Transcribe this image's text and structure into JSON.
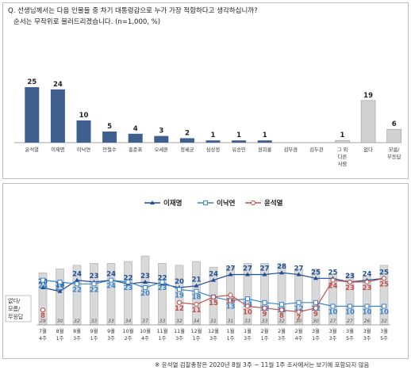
{
  "question": {
    "line1": "Q. 선생님께서는 다음 인물들 중 차기 대통령감으로 누가 가장 적합하다고 생각하십니까?",
    "line2": "순서는 무작위로 불러드리겠습니다. (n=1,000, %)"
  },
  "footnote": "※ 윤석열 검찰총장은 2020년 8월 3주 ~ 11월 1주 조사에서는 보기에 포함되지 않음",
  "colors": {
    "bar_main": "#3f5f8f",
    "bar_other": "#d0d0d0",
    "line_lee_jm": "#1f4e96",
    "line_lee_ny": "#3a85c8",
    "line_yoon": "#c0504d",
    "back_bar": "#d9d9d9"
  },
  "chart_data": [
    {
      "type": "bar",
      "categories": [
        "윤석열",
        "이재명",
        "이낙연",
        "안철수",
        "홍준표",
        "오세훈",
        "정세균",
        "심상정",
        "유승민",
        "원희룡",
        "김부겸",
        "김두관",
        "그 외 다른 사람",
        "없다",
        "모름/ 무응답"
      ],
      "values": [
        25,
        24,
        10,
        5,
        4,
        3,
        2,
        1,
        1,
        1,
        null,
        null,
        1,
        19,
        6
      ],
      "ylim": [
        0,
        30
      ]
    },
    {
      "type": "line",
      "x": [
        "7월 4주",
        "8월 1주",
        "8월 3주",
        "9월 1주",
        "9월 3주",
        "10월 2주",
        "10월 4주",
        "11월 1주",
        "11월 3주",
        "12월 1주",
        "12월 3주",
        "1월 1주",
        "1월 3주",
        "2월 1주",
        "2월 3주",
        "3월 1주",
        "3월 3주",
        "3월 5주",
        "3월 1주",
        "3월 3주",
        "3월 5주"
      ],
      "x_display": [
        [
          "7월",
          "4주"
        ],
        [
          "8월",
          "1주"
        ],
        [
          "8월",
          "3주"
        ],
        [
          "9월",
          "1주"
        ],
        [
          "9월",
          "3주"
        ],
        [
          "10월",
          "2주"
        ],
        [
          "10월",
          "4주"
        ],
        [
          "11월",
          "1주"
        ],
        [
          "11월",
          "3주"
        ],
        [
          "12월",
          "1주"
        ],
        [
          "12월",
          "3주"
        ],
        [
          "1월",
          "1주"
        ],
        [
          "1월",
          "3주"
        ],
        [
          "2월",
          "1주"
        ],
        [
          "2월",
          "3주"
        ],
        [
          "2월",
          "4주"
        ],
        [
          "3월",
          "1주"
        ],
        [
          "3월",
          "3주"
        ],
        [
          "3월",
          "5주"
        ],
        [
          "3월",
          "3주"
        ],
        [
          "3월",
          "5주"
        ]
      ],
      "legend": [
        "이재명",
        "이낙연",
        "윤석열"
      ],
      "legend_position": "top",
      "series": [
        {
          "name": "이재명",
          "values": [
            20,
            18,
            24,
            23,
            24,
            22,
            23,
            22,
            20,
            21,
            24,
            27,
            27,
            27,
            28,
            27,
            25,
            25,
            23,
            24,
            25
          ]
        },
        {
          "name": "이낙연",
          "values": [
            24,
            23,
            22,
            22,
            24,
            23,
            20,
            23,
            19,
            18,
            15,
            13,
            14,
            12,
            11,
            12,
            12,
            10,
            10,
            10,
            10
          ]
        },
        {
          "name": "윤석열",
          "values": [
            8,
            null,
            null,
            null,
            null,
            null,
            null,
            null,
            12,
            11,
            15,
            16,
            10,
            9,
            8,
            7,
            9,
            24,
            23,
            23,
            25
          ]
        }
      ],
      "back_bars_label": "없다/ 모름/ 무응답",
      "back_bars": [
        28,
        30,
        32,
        33,
        33,
        34,
        37,
        33,
        32,
        34,
        31,
        31,
        33,
        33,
        32,
        30,
        30,
        27,
        27,
        26,
        32
      ],
      "ylim": [
        0,
        40
      ],
      "grid": false
    }
  ]
}
